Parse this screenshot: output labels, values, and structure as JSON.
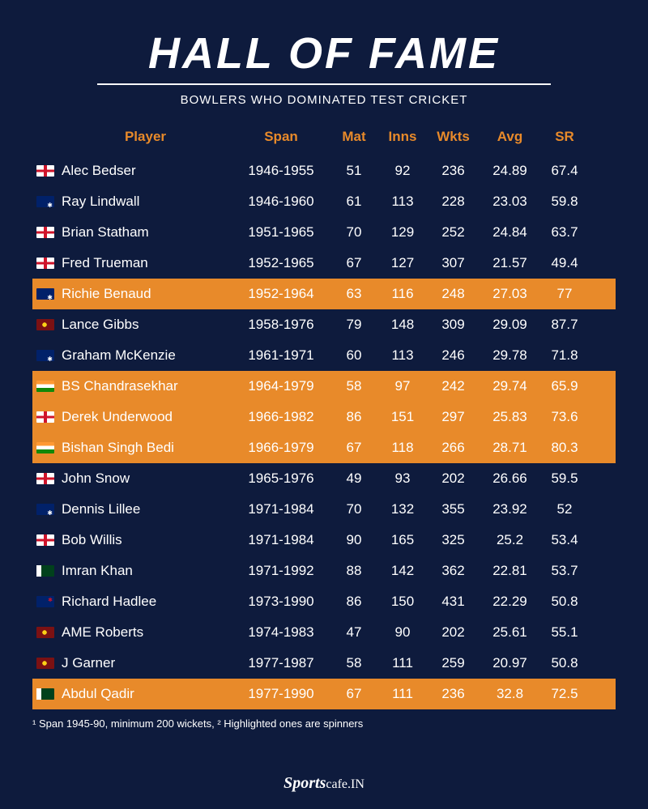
{
  "title": "HALL OF FAME",
  "subtitle": "BOWLERS WHO DOMINATED TEST CRICKET",
  "columns": {
    "player": "Player",
    "span": "Span",
    "mat": "Mat",
    "inns": "Inns",
    "wkts": "Wkts",
    "avg": "Avg",
    "sr": "SR"
  },
  "rows": [
    {
      "flag": "eng",
      "player": "Alec Bedser",
      "span": "1946-1955",
      "mat": "51",
      "inns": "92",
      "wkts": "236",
      "avg": "24.89",
      "sr": "67.4",
      "hl": false
    },
    {
      "flag": "aus",
      "player": "Ray Lindwall",
      "span": "1946-1960",
      "mat": "61",
      "inns": "113",
      "wkts": "228",
      "avg": "23.03",
      "sr": "59.8",
      "hl": false
    },
    {
      "flag": "eng",
      "player": "Brian Statham",
      "span": "1951-1965",
      "mat": "70",
      "inns": "129",
      "wkts": "252",
      "avg": "24.84",
      "sr": "63.7",
      "hl": false
    },
    {
      "flag": "eng",
      "player": "Fred Trueman",
      "span": "1952-1965",
      "mat": "67",
      "inns": "127",
      "wkts": "307",
      "avg": "21.57",
      "sr": "49.4",
      "hl": false
    },
    {
      "flag": "aus",
      "player": "Richie Benaud",
      "span": "1952-1964",
      "mat": "63",
      "inns": "116",
      "wkts": "248",
      "avg": "27.03",
      "sr": "77",
      "hl": true
    },
    {
      "flag": "wi",
      "player": "Lance Gibbs",
      "span": "1958-1976",
      "mat": "79",
      "inns": "148",
      "wkts": "309",
      "avg": "29.09",
      "sr": "87.7",
      "hl": false
    },
    {
      "flag": "aus",
      "player": "Graham McKenzie",
      "span": "1961-1971",
      "mat": "60",
      "inns": "113",
      "wkts": "246",
      "avg": "29.78",
      "sr": "71.8",
      "hl": false
    },
    {
      "flag": "ind",
      "player": "BS Chandrasekhar",
      "span": "1964-1979",
      "mat": "58",
      "inns": "97",
      "wkts": "242",
      "avg": "29.74",
      "sr": "65.9",
      "hl": true
    },
    {
      "flag": "eng",
      "player": "Derek Underwood",
      "span": "1966-1982",
      "mat": "86",
      "inns": "151",
      "wkts": "297",
      "avg": "25.83",
      "sr": "73.6",
      "hl": true
    },
    {
      "flag": "ind",
      "player": "Bishan Singh Bedi",
      "span": "1966-1979",
      "mat": "67",
      "inns": "118",
      "wkts": "266",
      "avg": "28.71",
      "sr": "80.3",
      "hl": true
    },
    {
      "flag": "eng",
      "player": "John Snow",
      "span": "1965-1976",
      "mat": "49",
      "inns": "93",
      "wkts": "202",
      "avg": "26.66",
      "sr": "59.5",
      "hl": false
    },
    {
      "flag": "aus",
      "player": "Dennis Lillee",
      "span": "1971-1984",
      "mat": "70",
      "inns": "132",
      "wkts": "355",
      "avg": "23.92",
      "sr": "52",
      "hl": false
    },
    {
      "flag": "eng",
      "player": "Bob Willis",
      "span": "1971-1984",
      "mat": "90",
      "inns": "165",
      "wkts": "325",
      "avg": "25.2",
      "sr": "53.4",
      "hl": false
    },
    {
      "flag": "pak",
      "player": "Imran Khan",
      "span": "1971-1992",
      "mat": "88",
      "inns": "142",
      "wkts": "362",
      "avg": "22.81",
      "sr": "53.7",
      "hl": false
    },
    {
      "flag": "nz",
      "player": "Richard Hadlee",
      "span": "1973-1990",
      "mat": "86",
      "inns": "150",
      "wkts": "431",
      "avg": "22.29",
      "sr": "50.8",
      "hl": false
    },
    {
      "flag": "wi",
      "player": "AME Roberts",
      "span": "1974-1983",
      "mat": "47",
      "inns": "90",
      "wkts": "202",
      "avg": "25.61",
      "sr": "55.1",
      "hl": false
    },
    {
      "flag": "wi",
      "player": "J Garner",
      "span": "1977-1987",
      "mat": "58",
      "inns": "111",
      "wkts": "259",
      "avg": "20.97",
      "sr": "50.8",
      "hl": false
    },
    {
      "flag": "pak",
      "player": "Abdul Qadir",
      "span": "1977-1990",
      "mat": "67",
      "inns": "111",
      "wkts": "236",
      "avg": "32.8",
      "sr": "72.5",
      "hl": true
    }
  ],
  "footnote": "¹ Span 1945-90, minimum 200 wickets, ² Highlighted ones are spinners",
  "footer": {
    "brand": "Sports",
    "suffix": "cafe.IN"
  },
  "colors": {
    "background": "#0e1b3d",
    "accent": "#e88a2a",
    "text": "#ffffff"
  }
}
